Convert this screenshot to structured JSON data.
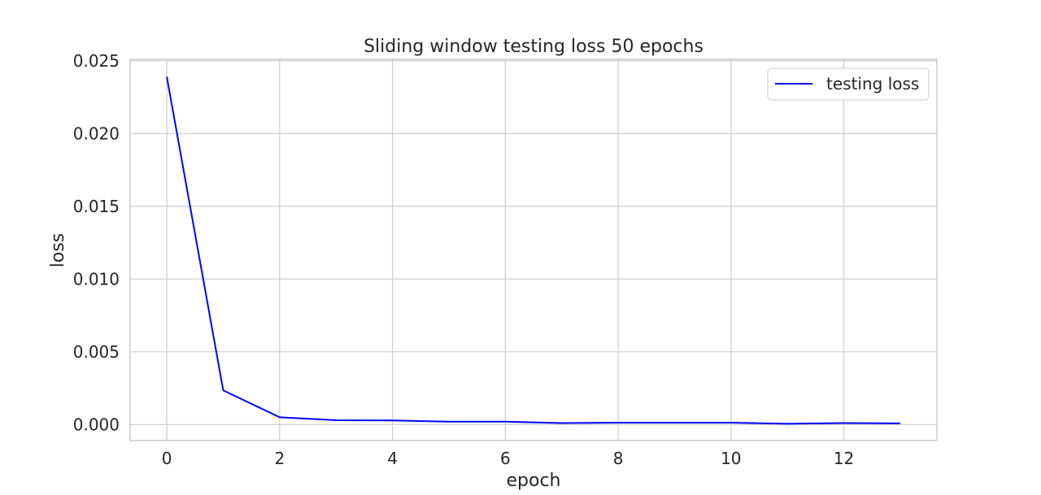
{
  "chart_data": {
    "type": "line",
    "title": "Sliding window testing loss 50 epochs",
    "xlabel": "epoch",
    "ylabel": "loss",
    "xlim": [
      -0.65,
      13.65
    ],
    "ylim": [
      -0.0011,
      0.0251
    ],
    "xticks": [
      0,
      2,
      4,
      6,
      8,
      10,
      12
    ],
    "xtick_labels": [
      "0",
      "2",
      "4",
      "6",
      "8",
      "10",
      "12"
    ],
    "yticks": [
      0.0,
      0.005,
      0.01,
      0.015,
      0.02,
      0.025
    ],
    "ytick_labels": [
      "0.000",
      "0.005",
      "0.010",
      "0.015",
      "0.020",
      "0.025"
    ],
    "grid": true,
    "legend_position": "top-right",
    "series": [
      {
        "name": "testing loss",
        "color": "#0000ff",
        "x": [
          0,
          1,
          2,
          3,
          4,
          5,
          6,
          7,
          8,
          9,
          10,
          11,
          12,
          13
        ],
        "y": [
          0.0239,
          0.00235,
          0.0005,
          0.0003,
          0.00028,
          0.0002,
          0.0002,
          0.0001,
          0.00013,
          0.00013,
          0.00013,
          5e-05,
          0.0001,
          8e-05
        ]
      }
    ]
  }
}
